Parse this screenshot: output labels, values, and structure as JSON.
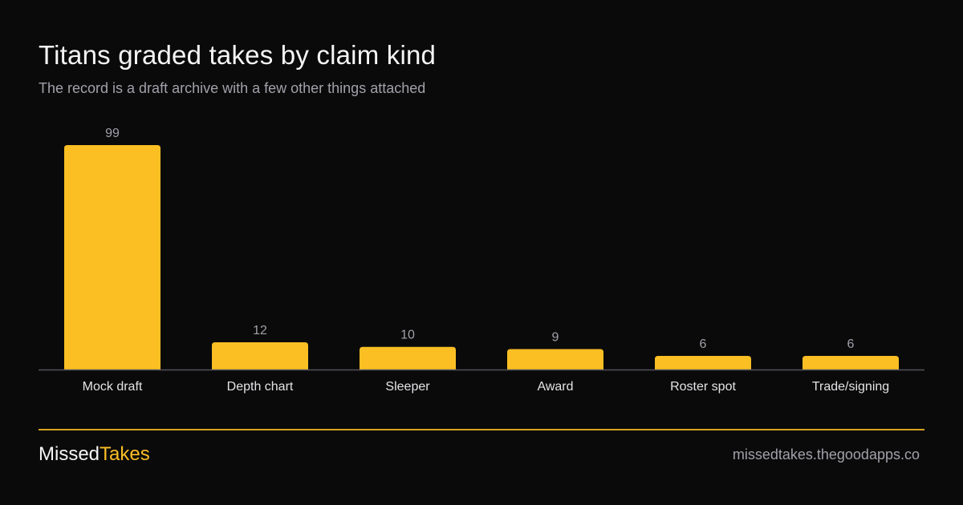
{
  "header": {
    "title": "Titans graded takes by claim kind",
    "subtitle": "The record is a draft archive with a few other things attached"
  },
  "chart_data": {
    "type": "bar",
    "categories": [
      "Mock draft",
      "Depth chart",
      "Sleeper",
      "Award",
      "Roster spot",
      "Trade/signing"
    ],
    "values": [
      99,
      12,
      10,
      9,
      6,
      6
    ],
    "title": "Titans graded takes by claim kind",
    "subtitle": "The record is a draft archive with a few other things attached",
    "xlabel": "",
    "ylabel": "",
    "ylim": [
      0,
      99
    ],
    "grid": false,
    "legend": "none",
    "data_labels": true
  },
  "footer": {
    "brand_part1": "Missed",
    "brand_part2": "Takes",
    "site": "missedtakes.thegoodapps.co"
  },
  "colors": {
    "background": "#0a0a0a",
    "bar": "#fbbf24",
    "axis": "#52525b",
    "value_label": "#a1a1aa",
    "category_label": "#e4e4e7",
    "accent": "#fbbf24"
  }
}
